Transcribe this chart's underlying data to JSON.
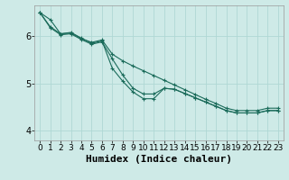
{
  "xlabel": "Humidex (Indice chaleur)",
  "bg_color": "#ceeae7",
  "line_color": "#1a6b5a",
  "grid_color": "#afd8d4",
  "xlim": [
    -0.5,
    23.5
  ],
  "ylim": [
    3.8,
    6.65
  ],
  "yticks": [
    4,
    5,
    6
  ],
  "xticks": [
    0,
    1,
    2,
    3,
    4,
    5,
    6,
    7,
    8,
    9,
    10,
    11,
    12,
    13,
    14,
    15,
    16,
    17,
    18,
    19,
    20,
    21,
    22,
    23
  ],
  "line1_x": [
    0,
    1,
    2,
    3,
    4,
    5,
    6,
    7,
    8,
    9,
    10,
    11,
    12,
    13,
    14,
    15,
    16,
    17,
    18,
    19,
    20,
    21,
    22,
    23
  ],
  "line1_y": [
    6.5,
    6.2,
    6.05,
    6.07,
    5.95,
    5.87,
    5.92,
    5.62,
    5.48,
    5.37,
    5.27,
    5.17,
    5.07,
    4.97,
    4.87,
    4.77,
    4.67,
    4.58,
    4.48,
    4.43,
    4.43,
    4.43,
    4.48,
    4.48
  ],
  "line2_x": [
    0,
    1,
    2,
    3,
    4,
    5,
    6,
    7,
    8,
    9,
    10,
    11,
    12,
    13,
    14,
    15,
    16,
    17,
    18,
    19,
    20,
    21,
    22,
    23
  ],
  "line2_y": [
    6.5,
    6.18,
    6.03,
    6.05,
    5.93,
    5.83,
    5.88,
    5.52,
    5.18,
    4.9,
    4.78,
    4.78,
    4.9,
    4.88,
    4.79,
    4.7,
    4.61,
    4.52,
    4.43,
    4.38,
    4.38,
    4.38,
    4.43,
    4.43
  ],
  "line3_x": [
    0,
    1,
    2,
    3,
    4,
    5,
    6,
    7,
    8,
    9,
    10,
    11,
    12,
    13,
    14,
    15,
    16,
    17,
    18,
    19,
    20,
    21,
    22,
    23
  ],
  "line3_y": [
    6.5,
    6.35,
    6.05,
    6.08,
    5.96,
    5.85,
    5.9,
    5.32,
    5.05,
    4.82,
    4.68,
    4.68,
    4.9,
    4.88,
    4.79,
    4.7,
    4.61,
    4.52,
    4.43,
    4.38,
    4.38,
    4.38,
    4.43,
    4.43
  ],
  "marker": "+",
  "markersize": 3,
  "linewidth": 0.8,
  "xlabel_fontsize": 8,
  "tick_fontsize": 6.5
}
